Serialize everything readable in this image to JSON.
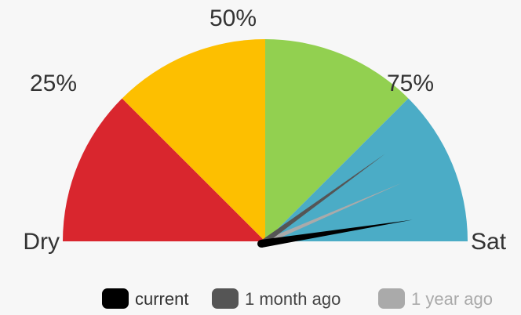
{
  "chart_data": {
    "type": "gauge",
    "range": [
      0,
      100
    ],
    "ticks": [
      {
        "value": 0,
        "label": "Dry"
      },
      {
        "value": 25,
        "label": "25%"
      },
      {
        "value": 50,
        "label": "50%"
      },
      {
        "value": 75,
        "label": "75%"
      },
      {
        "value": 100,
        "label": "Sat"
      }
    ],
    "bands": [
      {
        "from": 0,
        "to": 25,
        "color": "#d9262e"
      },
      {
        "from": 25,
        "to": 50,
        "color": "#fdbf00"
      },
      {
        "from": 50,
        "to": 75,
        "color": "#92d050"
      },
      {
        "from": 75,
        "to": 100,
        "color": "#4bacc6"
      }
    ],
    "series": [
      {
        "name": "current",
        "color": "#000000",
        "value": 95
      },
      {
        "name": "1 month ago",
        "color": "#555555",
        "value": 80
      },
      {
        "name": "1 year ago",
        "color": "#aaaaaa",
        "value": 87
      }
    ]
  }
}
